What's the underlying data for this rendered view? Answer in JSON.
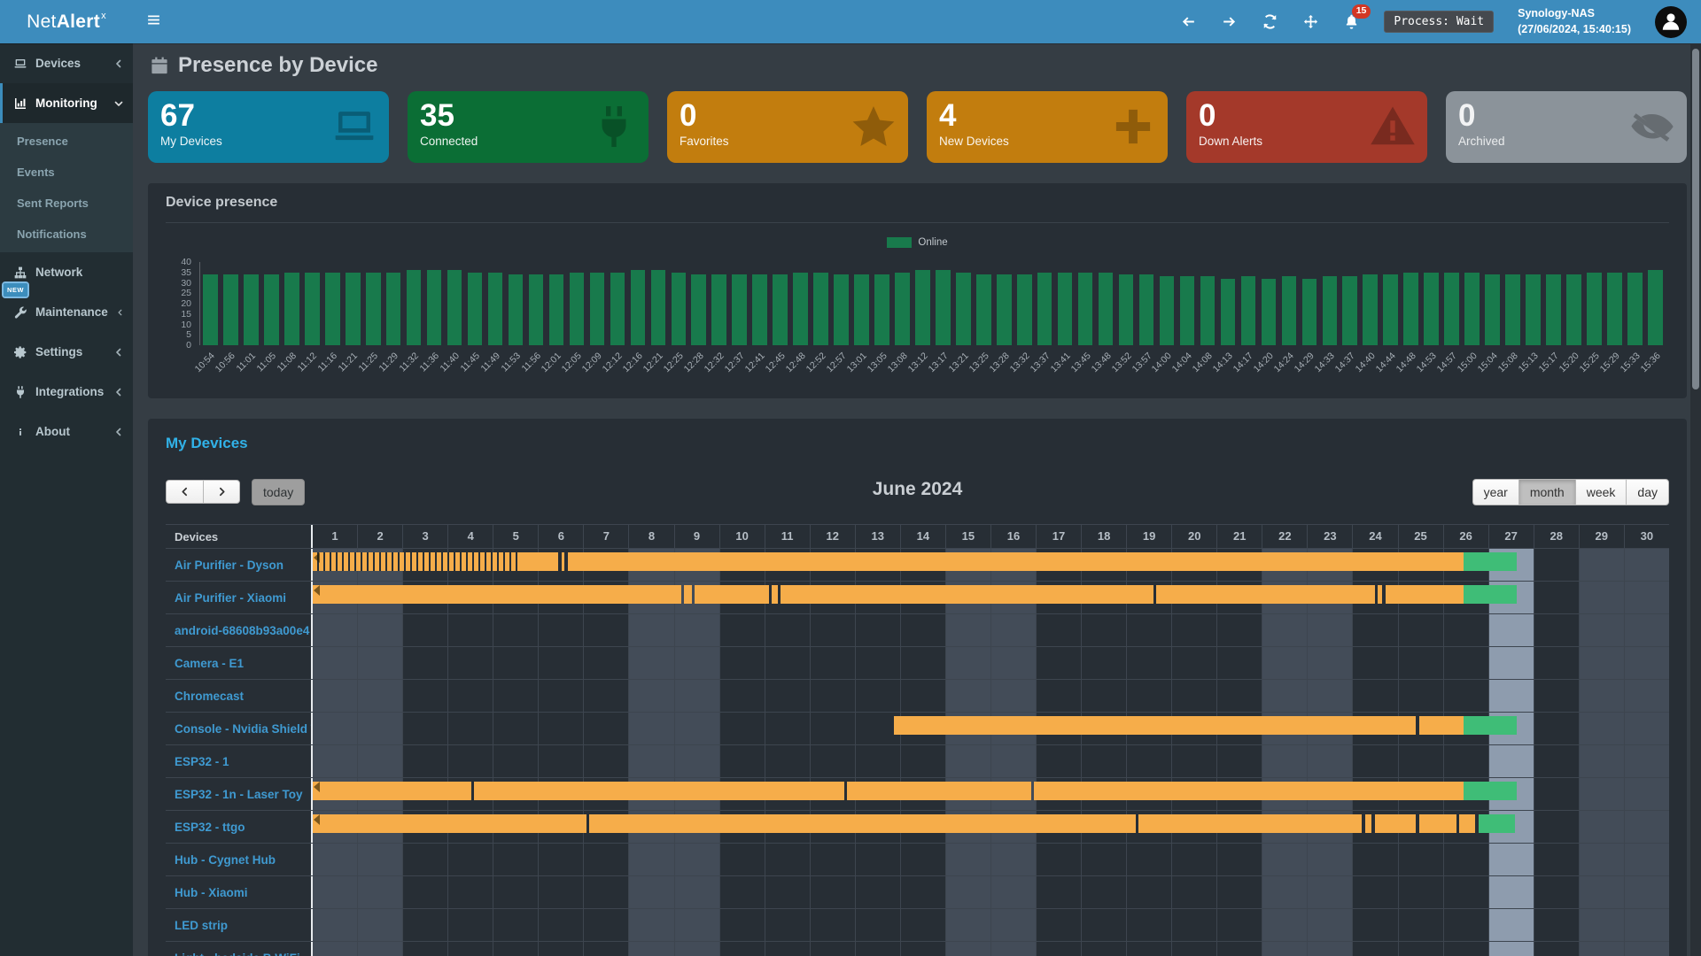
{
  "header": {
    "app_name_prefix": "Net",
    "app_name_bold": "Alert",
    "app_name_sup": "x",
    "notification_count": "15",
    "process_status": "Process: Wait",
    "device_name": "Synology-NAS",
    "timestamp": "(27/06/2024, 15:40:15)"
  },
  "sidebar": {
    "items": [
      {
        "label": "Devices",
        "icon": "laptop",
        "chevron": "left"
      },
      {
        "label": "Monitoring",
        "icon": "chart",
        "chevron": "down",
        "active": true,
        "submenu": [
          "Presence",
          "Events",
          "Sent Reports",
          "Notifications"
        ]
      },
      {
        "label": "Network",
        "icon": "sitemap"
      },
      {
        "label": "Maintenance",
        "icon": "wrench",
        "chevron": "left",
        "badge": "NEW"
      },
      {
        "label": "Settings",
        "icon": "gear",
        "chevron": "left"
      },
      {
        "label": "Integrations",
        "icon": "plug",
        "chevron": "left"
      },
      {
        "label": "About",
        "icon": "info",
        "chevron": "left"
      }
    ]
  },
  "page": {
    "title": "Presence by Device"
  },
  "cards": [
    {
      "value": "67",
      "label": "My Devices",
      "icon": "laptop",
      "color": "#0d7ea0"
    },
    {
      "value": "35",
      "label": "Connected",
      "icon": "plug",
      "color": "#0b6e35"
    },
    {
      "value": "0",
      "label": "Favorites",
      "icon": "star",
      "color": "#c27d0e"
    },
    {
      "value": "4",
      "label": "New Devices",
      "icon": "plus",
      "color": "#c27d0e"
    },
    {
      "value": "0",
      "label": "Down Alerts",
      "icon": "warning",
      "color": "#a4392a"
    },
    {
      "value": "0",
      "label": "Archived",
      "icon": "eye-off",
      "color": "#8b939a",
      "gray": true
    }
  ],
  "chart_data": {
    "type": "bar",
    "title": "Device presence",
    "legend": [
      "Online"
    ],
    "legend_position": "top-center",
    "bar_color": "#187a4c",
    "ylim": [
      0,
      40
    ],
    "yticks": [
      0,
      5,
      10,
      15,
      20,
      25,
      30,
      35,
      40
    ],
    "grid": false,
    "x": [
      "10:54",
      "10:56",
      "11:01",
      "11:05",
      "11:08",
      "11:12",
      "11:16",
      "11:21",
      "11:25",
      "11:29",
      "11:32",
      "11:36",
      "11:40",
      "11:45",
      "11:49",
      "11:53",
      "11:56",
      "12:01",
      "12:05",
      "12:09",
      "12:12",
      "12:16",
      "12:21",
      "12:25",
      "12:28",
      "12:32",
      "12:37",
      "12:41",
      "12:45",
      "12:48",
      "12:52",
      "12:57",
      "13:01",
      "13:05",
      "13:08",
      "13:12",
      "13:17",
      "13:21",
      "13:25",
      "13:28",
      "13:32",
      "13:37",
      "13:41",
      "13:45",
      "13:48",
      "13:52",
      "13:57",
      "14:00",
      "14:04",
      "14:08",
      "14:13",
      "14:17",
      "14:20",
      "14:24",
      "14:29",
      "14:33",
      "14:37",
      "14:40",
      "14:44",
      "14:48",
      "14:53",
      "14:57",
      "15:00",
      "15:04",
      "15:08",
      "15:13",
      "15:17",
      "15:20",
      "15:25",
      "15:29",
      "15:33",
      "15:36"
    ],
    "values": [
      34,
      34,
      34,
      34,
      35,
      35,
      35,
      35,
      35,
      35,
      36,
      36,
      36,
      35,
      35,
      34,
      34,
      34,
      35,
      35,
      35,
      36,
      36,
      35,
      34,
      34,
      34,
      34,
      34,
      35,
      35,
      34,
      34,
      34,
      35,
      36,
      36,
      35,
      34,
      34,
      34,
      35,
      35,
      35,
      35,
      34,
      34,
      33,
      33,
      33,
      32,
      33,
      32,
      33,
      32,
      33,
      33,
      34,
      34,
      35,
      35,
      35,
      35,
      34,
      34,
      34,
      34,
      34,
      35,
      35,
      35,
      36
    ]
  },
  "calendar": {
    "title": "My Devices",
    "toolbar": {
      "today_label": "today",
      "month_label": "June 2024",
      "views": [
        "year",
        "month",
        "week",
        "day"
      ],
      "active_view": "month"
    },
    "columns_label": "Devices",
    "day_count": 30,
    "weekend_days": [
      1,
      2,
      8,
      9,
      15,
      16,
      22,
      23,
      29,
      30
    ],
    "today_day": 27,
    "segment_colors": {
      "online": "#f6ad4a",
      "current": "#3fbd77"
    },
    "devices": [
      {
        "name": "Air Purifier - Dyson",
        "arrow": true,
        "segments": [
          {
            "s": 0,
            "e": 4.6,
            "t": "online",
            "striped": true
          },
          {
            "s": 4.6,
            "e": 5.42,
            "t": "online"
          },
          {
            "s": 5.5,
            "e": 5.56,
            "t": "online"
          },
          {
            "s": 5.64,
            "e": 25.45,
            "t": "online"
          },
          {
            "s": 25.45,
            "e": 26.63,
            "t": "current"
          }
        ]
      },
      {
        "name": "Air Purifier - Xiaomi",
        "arrow": true,
        "segments": [
          {
            "s": 0,
            "e": 8.15,
            "t": "online"
          },
          {
            "s": 8.22,
            "e": 8.38,
            "t": "online"
          },
          {
            "s": 8.44,
            "e": 10.1,
            "t": "online"
          },
          {
            "s": 10.16,
            "e": 10.28,
            "t": "online"
          },
          {
            "s": 10.34,
            "e": 18.6,
            "t": "online"
          },
          {
            "s": 18.66,
            "e": 23.5,
            "t": "online"
          },
          {
            "s": 23.56,
            "e": 23.66,
            "t": "online"
          },
          {
            "s": 23.72,
            "e": 25.45,
            "t": "online"
          },
          {
            "s": 25.45,
            "e": 26.63,
            "t": "current"
          }
        ]
      },
      {
        "name": "android-68608b93a00e4",
        "segments": []
      },
      {
        "name": "Camera - E1",
        "segments": []
      },
      {
        "name": "Chromecast",
        "segments": []
      },
      {
        "name": "Console - Nvidia Shield T",
        "segments": [
          {
            "s": 12.85,
            "e": 24.4,
            "t": "online"
          },
          {
            "s": 24.47,
            "e": 25.45,
            "t": "online"
          },
          {
            "s": 25.45,
            "e": 26.63,
            "t": "current"
          }
        ]
      },
      {
        "name": "ESP32 - 1",
        "segments": []
      },
      {
        "name": "ESP32 - 1n - Laser Toy",
        "arrow": true,
        "segments": [
          {
            "s": 0,
            "e": 3.5,
            "t": "online"
          },
          {
            "s": 3.56,
            "e": 11.75,
            "t": "online"
          },
          {
            "s": 11.81,
            "e": 15.9,
            "t": "online"
          },
          {
            "s": 15.96,
            "e": 25.45,
            "t": "online"
          },
          {
            "s": 25.45,
            "e": 26.63,
            "t": "current"
          }
        ]
      },
      {
        "name": "ESP32 - ttgo",
        "arrow": true,
        "segments": [
          {
            "s": 0,
            "e": 6.05,
            "t": "online"
          },
          {
            "s": 6.11,
            "e": 18.2,
            "t": "online"
          },
          {
            "s": 18.26,
            "e": 23.2,
            "t": "online"
          },
          {
            "s": 23.28,
            "e": 23.42,
            "t": "online"
          },
          {
            "s": 23.5,
            "e": 24.4,
            "t": "online"
          },
          {
            "s": 24.48,
            "e": 25.3,
            "t": "online"
          },
          {
            "s": 25.36,
            "e": 25.7,
            "t": "online"
          },
          {
            "s": 25.78,
            "e": 26.6,
            "t": "current"
          }
        ]
      },
      {
        "name": "Hub - Cygnet Hub",
        "segments": []
      },
      {
        "name": "Hub - Xiaomi",
        "segments": []
      },
      {
        "name": "LED strip",
        "segments": []
      },
      {
        "name": "Light - bedside B WiFi",
        "segments": []
      }
    ]
  }
}
